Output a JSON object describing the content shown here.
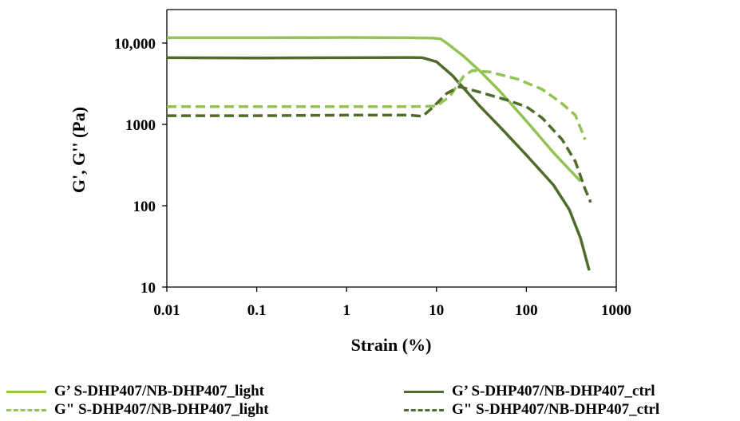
{
  "chart_data": {
    "type": "line",
    "xlabel": "Strain (%)",
    "ylabel": "G', G'' (Pa)",
    "x_scale": "log",
    "y_scale": "log",
    "xlim": [
      0.01,
      1000
    ],
    "ylim": [
      10,
      20000
    ],
    "x_ticks": [
      "0.01",
      "0.1",
      "1",
      "10",
      "100",
      "1000"
    ],
    "y_ticks": [
      "10",
      "100",
      "1000",
      "10,000"
    ],
    "grid": false,
    "legend_position": "bottom",
    "series": [
      {
        "name": "G’ S-DHP407/NB-DHP407_light",
        "color": "#92c353",
        "dash": "solid",
        "points": [
          [
            0.01,
            11600
          ],
          [
            0.1,
            11600
          ],
          [
            1,
            11700
          ],
          [
            5,
            11600
          ],
          [
            9,
            11500
          ],
          [
            11,
            11300
          ],
          [
            13,
            10000
          ],
          [
            20,
            6900
          ],
          [
            30,
            4600
          ],
          [
            50,
            2600
          ],
          [
            100,
            1100
          ],
          [
            200,
            450
          ],
          [
            300,
            280
          ],
          [
            400,
            200
          ]
        ]
      },
      {
        "name": "G’ S-DHP407/NB-DHP407_ctrl",
        "color": "#4e6b2a",
        "dash": "solid",
        "points": [
          [
            0.01,
            6600
          ],
          [
            0.1,
            6550
          ],
          [
            1,
            6600
          ],
          [
            5,
            6650
          ],
          [
            7,
            6600
          ],
          [
            10,
            5900
          ],
          [
            15,
            4000
          ],
          [
            20,
            2800
          ],
          [
            30,
            1700
          ],
          [
            50,
            950
          ],
          [
            100,
            420
          ],
          [
            200,
            180
          ],
          [
            300,
            90
          ],
          [
            400,
            40
          ],
          [
            500,
            16
          ]
        ]
      },
      {
        "name": "G\" S-DHP407/NB-DHP407_light",
        "color": "#92c353",
        "dash": "dashed",
        "points": [
          [
            0.01,
            1650
          ],
          [
            0.1,
            1650
          ],
          [
            1,
            1650
          ],
          [
            5,
            1650
          ],
          [
            10,
            1680
          ],
          [
            14,
            2200
          ],
          [
            20,
            3900
          ],
          [
            25,
            4600
          ],
          [
            40,
            4400
          ],
          [
            80,
            3600
          ],
          [
            150,
            2700
          ],
          [
            250,
            1800
          ],
          [
            350,
            1300
          ],
          [
            450,
            650
          ]
        ]
      },
      {
        "name": "G\" S-DHP407/NB-DHP407_ctrl",
        "color": "#4e6b2a",
        "dash": "dashed",
        "points": [
          [
            0.01,
            1280
          ],
          [
            0.1,
            1280
          ],
          [
            1,
            1300
          ],
          [
            5,
            1300
          ],
          [
            7,
            1260
          ],
          [
            9,
            1600
          ],
          [
            13,
            2400
          ],
          [
            18,
            2900
          ],
          [
            30,
            2500
          ],
          [
            60,
            2000
          ],
          [
            100,
            1650
          ],
          [
            150,
            1200
          ],
          [
            250,
            650
          ],
          [
            350,
            350
          ],
          [
            450,
            160
          ],
          [
            520,
            110
          ]
        ]
      }
    ]
  }
}
